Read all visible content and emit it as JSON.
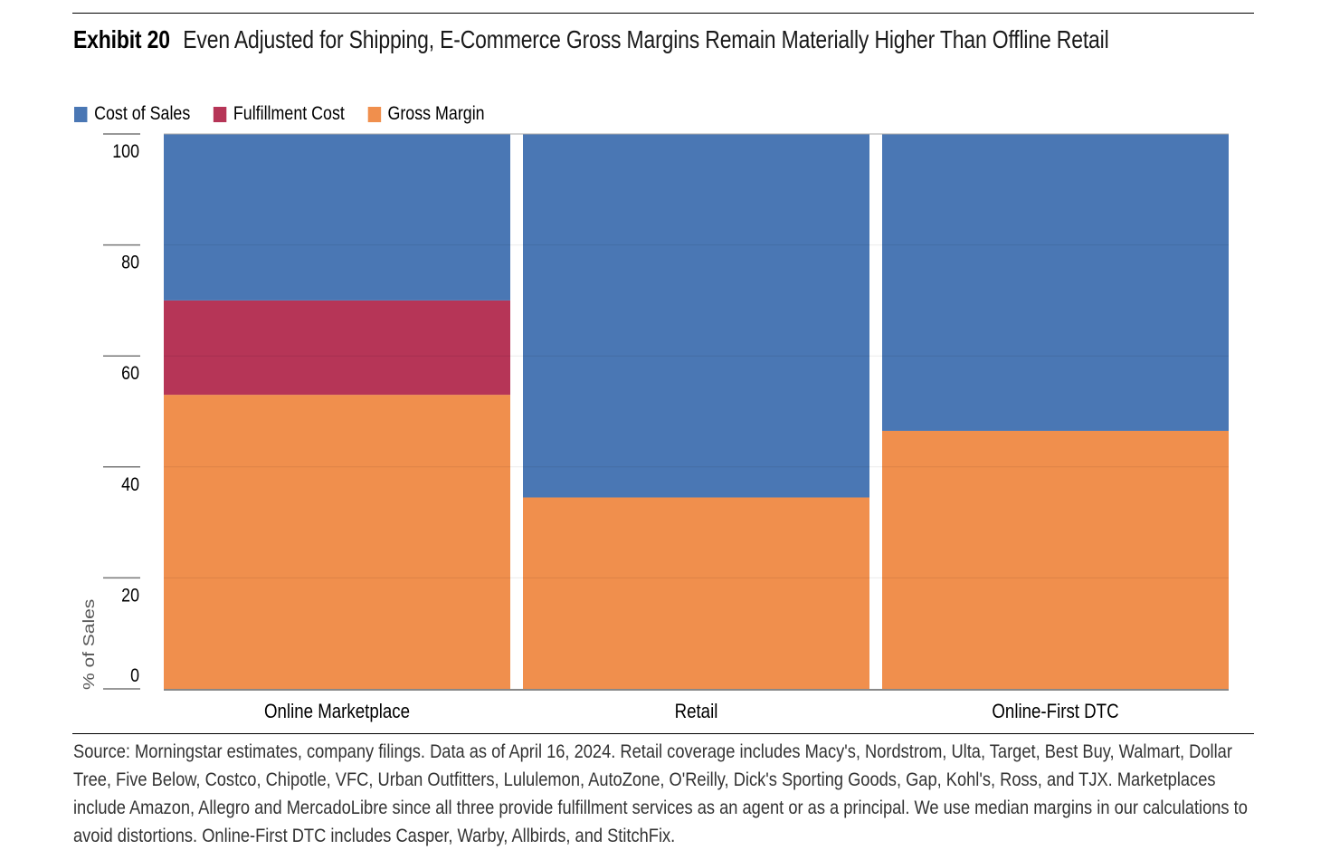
{
  "header": {
    "exhibit_label": "Exhibit 20",
    "title": "Even Adjusted for Shipping, E-Commerce Gross Margins Remain Materially Higher Than Offline Retail"
  },
  "chart_data": {
    "type": "bar",
    "stacked": true,
    "variable_width": true,
    "categories": [
      "Online Marketplace",
      "Retail",
      "Online-First DTC"
    ],
    "series": [
      {
        "name": "Gross Margin",
        "color": "#F08F4D",
        "values": [
          53,
          34.5,
          46.5
        ]
      },
      {
        "name": "Fulfillment Cost",
        "color": "#B63557",
        "values": [
          17,
          0,
          0
        ]
      },
      {
        "name": "Cost of Sales",
        "color": "#4A77B4",
        "values": [
          30,
          65.5,
          53.5
        ]
      }
    ],
    "legend_order": [
      "Cost of Sales",
      "Fulfillment Cost",
      "Gross Margin"
    ],
    "ylabel": "% of Sales",
    "xlabel": "",
    "ylim": [
      0,
      100
    ],
    "yticks": [
      0,
      20,
      40,
      60,
      80,
      100
    ],
    "grid": true,
    "legend_position": "top-left"
  },
  "footer": {
    "source": "Source: Morningstar estimates, company filings. Data as of April 16, 2024. Retail coverage includes Macy's, Nordstrom, Ulta, Target, Best Buy, Walmart, Dollar Tree, Five Below, Costco, Chipotle, VFC, Urban Outfitters, Lululemon, AutoZone, O'Reilly, Dick's Sporting Goods, Gap, Kohl's, Ross, and TJX. Marketplaces include Amazon, Allegro and MercadoLibre since all three provide fulfillment services as an agent or as a principal. We use median margins in our calculations to avoid distortions. Online-First DTC includes Casper, Warby, Allbirds, and StitchFix."
  }
}
